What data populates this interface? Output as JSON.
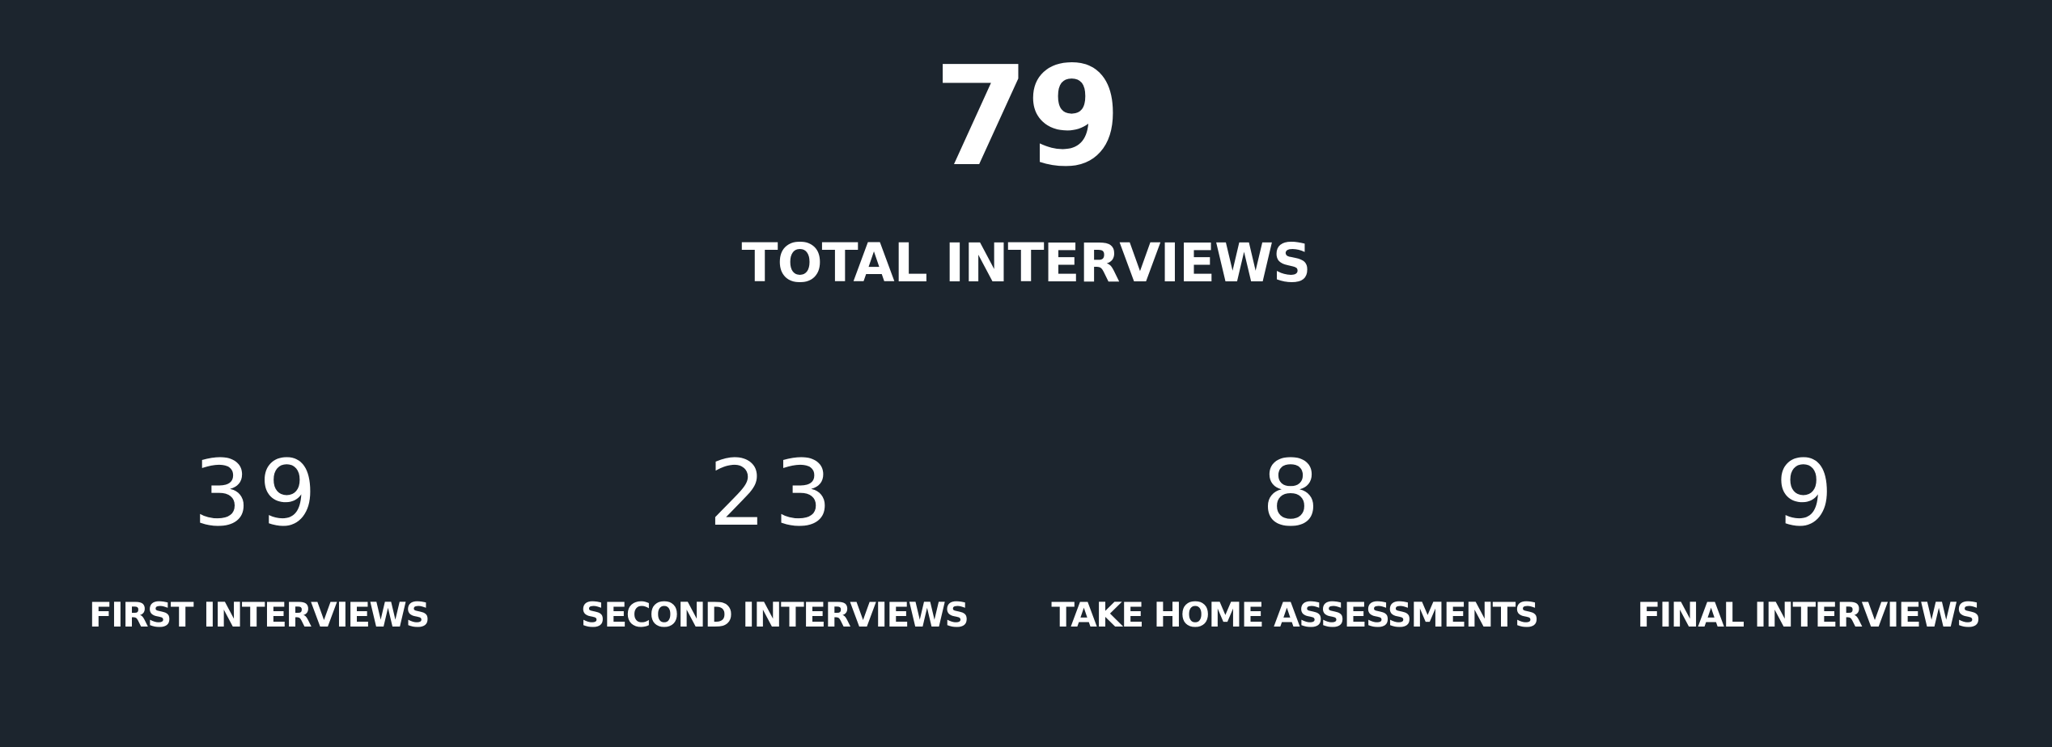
{
  "summary": {
    "total_value": "79",
    "total_label": "TOTAL INTERVIEWS"
  },
  "stats": [
    {
      "value": "39",
      "label": "FIRST INTERVIEWS"
    },
    {
      "value": "23",
      "label": "SECOND INTERVIEWS"
    },
    {
      "value": "8",
      "label": "TAKE HOME ASSESSMENTS"
    },
    {
      "value": "9",
      "label": "FINAL INTERVIEWS"
    }
  ],
  "colors": {
    "background": "#1c252e",
    "text": "#ffffff"
  }
}
